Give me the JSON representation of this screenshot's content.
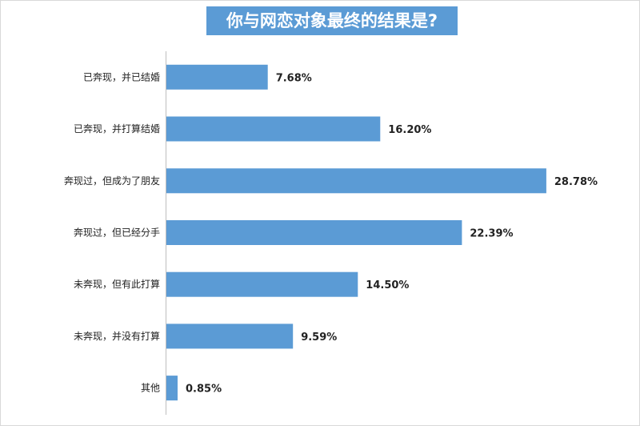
{
  "chart_data": {
    "type": "bar",
    "orientation": "horizontal",
    "title": "你与网恋对象最终的结果是?",
    "categories": [
      "已奔现，并已结婚",
      "已奔现，并打算结婚",
      "奔现过，但成为了朋友",
      "奔现过，但已经分手",
      "未奔现，但有此打算",
      "未奔现，并没有打算",
      "其他"
    ],
    "values": [
      7.68,
      16.2,
      28.78,
      22.39,
      14.5,
      9.59,
      0.85
    ],
    "value_labels": [
      "7.68%",
      "16.20%",
      "28.78%",
      "22.39%",
      "14.50%",
      "9.59%",
      "0.85%"
    ],
    "bar_color": "#5b9bd5",
    "title_bg_color": "#5b9bd5",
    "grid": false,
    "legend": "none"
  }
}
